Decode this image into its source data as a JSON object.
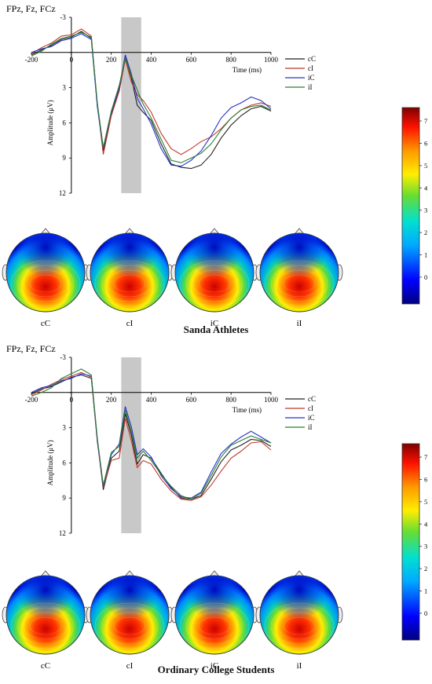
{
  "panels": [
    {
      "channel_label": "FPz, Fz, FCz",
      "group_title": "Sanda Athletes",
      "topo_labels": [
        "cC",
        "cI",
        "iC",
        "iI"
      ]
    },
    {
      "channel_label": "FPz, Fz, FCz",
      "group_title": "Ordinary College Students",
      "topo_labels": [
        "cC",
        "cI",
        "iC",
        "iI"
      ]
    }
  ],
  "colors": {
    "cC": "#222222",
    "cI": "#c0392b",
    "iC": "#2233cc",
    "iI": "#2e7d32",
    "highlight": "#c8c8c8"
  },
  "colorbar": {
    "ticks": [
      0,
      1,
      2,
      3,
      4,
      5,
      6,
      7
    ]
  },
  "chart_data": [
    {
      "type": "line",
      "title": "FPz, Fz, FCz",
      "xlabel": "Time (ms)",
      "ylabel": "Amplitude (μV)",
      "xlim": [
        -200,
        1000
      ],
      "ylim": [
        -3,
        12
      ],
      "y_inverted": true,
      "xticks": [
        -200,
        0,
        200,
        400,
        600,
        800,
        1000
      ],
      "yticks": [
        -3,
        0,
        3,
        6,
        9,
        12
      ],
      "shaded_window": [
        250,
        350
      ],
      "legend": "right",
      "x": [
        -200,
        -150,
        -100,
        -50,
        0,
        50,
        100,
        130,
        160,
        200,
        240,
        270,
        300,
        330,
        360,
        400,
        450,
        500,
        550,
        600,
        650,
        700,
        750,
        800,
        850,
        900,
        950,
        1000
      ],
      "series": [
        {
          "name": "cC",
          "values": [
            0.2,
            -0.2,
            -0.6,
            -1.1,
            -1.3,
            -1.8,
            -1.2,
            4.5,
            8.4,
            5.2,
            3.1,
            0.4,
            2.1,
            4.5,
            5.1,
            5.8,
            7.8,
            9.5,
            9.8,
            9.9,
            9.6,
            8.7,
            7.3,
            6.2,
            5.4,
            4.8,
            4.6,
            5.0
          ]
        },
        {
          "name": "cI",
          "values": [
            0.1,
            -0.4,
            -0.8,
            -1.4,
            -1.5,
            -2.0,
            -1.4,
            4.4,
            8.7,
            5.4,
            3.3,
            0.6,
            2.5,
            3.6,
            4.1,
            5.1,
            6.9,
            8.2,
            8.7,
            8.2,
            7.6,
            7.2,
            6.5,
            5.6,
            4.9,
            4.5,
            4.3,
            4.6
          ]
        },
        {
          "name": "iC",
          "values": [
            0.0,
            -0.3,
            -0.5,
            -1.0,
            -1.2,
            -1.6,
            -1.1,
            4.6,
            8.2,
            5.1,
            3.0,
            0.2,
            1.8,
            3.9,
            4.8,
            6.1,
            8.2,
            9.6,
            9.7,
            9.2,
            8.4,
            7.1,
            5.6,
            4.7,
            4.3,
            3.8,
            4.1,
            4.8
          ]
        },
        {
          "name": "iI",
          "values": [
            0.3,
            -0.1,
            -0.7,
            -1.2,
            -1.4,
            -1.7,
            -1.3,
            4.3,
            8.1,
            5.0,
            2.8,
            0.5,
            1.9,
            3.2,
            4.4,
            5.6,
            7.4,
            9.2,
            9.4,
            9.0,
            8.6,
            7.8,
            6.6,
            5.6,
            4.9,
            4.6,
            4.5,
            4.9
          ]
        }
      ]
    },
    {
      "type": "line",
      "title": "FPz, Fz, FCz",
      "xlabel": "Time (ms)",
      "ylabel": "Amplitude (μV)",
      "xlim": [
        -200,
        1000
      ],
      "ylim": [
        -3,
        12
      ],
      "y_inverted": true,
      "xticks": [
        -200,
        0,
        200,
        400,
        600,
        800,
        1000
      ],
      "yticks": [
        -3,
        0,
        3,
        6,
        9,
        12
      ],
      "shaded_window": [
        250,
        350
      ],
      "legend": "right",
      "x": [
        -200,
        -150,
        -100,
        -50,
        0,
        50,
        100,
        130,
        160,
        200,
        240,
        270,
        300,
        330,
        360,
        400,
        450,
        500,
        550,
        600,
        650,
        700,
        750,
        800,
        850,
        900,
        950,
        1000
      ],
      "series": [
        {
          "name": "cC",
          "values": [
            0.1,
            -0.3,
            -0.5,
            -0.9,
            -1.3,
            -1.5,
            -1.2,
            4.0,
            8.3,
            5.6,
            5.0,
            1.8,
            3.6,
            6.1,
            5.3,
            5.6,
            6.9,
            8.1,
            9.0,
            9.1,
            8.8,
            7.4,
            5.9,
            4.9,
            4.5,
            4.0,
            4.1,
            4.6
          ]
        },
        {
          "name": "cI",
          "values": [
            0.2,
            -0.2,
            -0.7,
            -1.1,
            -1.4,
            -1.7,
            -1.3,
            4.2,
            8.1,
            5.8,
            5.6,
            2.2,
            4.1,
            6.4,
            5.8,
            6.1,
            7.4,
            8.4,
            9.1,
            9.2,
            8.9,
            7.9,
            6.7,
            5.6,
            5.0,
            4.3,
            4.2,
            4.9
          ]
        },
        {
          "name": "iC",
          "values": [
            0.0,
            -0.4,
            -0.6,
            -1.0,
            -1.2,
            -1.6,
            -1.4,
            4.1,
            8.0,
            5.3,
            4.4,
            1.2,
            2.9,
            5.3,
            4.8,
            5.5,
            7.1,
            8.2,
            8.9,
            9.0,
            8.5,
            6.8,
            5.2,
            4.4,
            3.8,
            3.3,
            3.8,
            4.3
          ]
        },
        {
          "name": "iI",
          "values": [
            0.3,
            0.0,
            -0.4,
            -1.2,
            -1.6,
            -2.0,
            -1.5,
            3.9,
            7.9,
            5.1,
            4.6,
            1.5,
            3.3,
            5.6,
            5.0,
            5.8,
            7.0,
            8.0,
            8.8,
            9.1,
            8.6,
            7.1,
            5.5,
            4.5,
            4.1,
            3.7,
            4.0,
            4.3
          ]
        }
      ]
    }
  ]
}
